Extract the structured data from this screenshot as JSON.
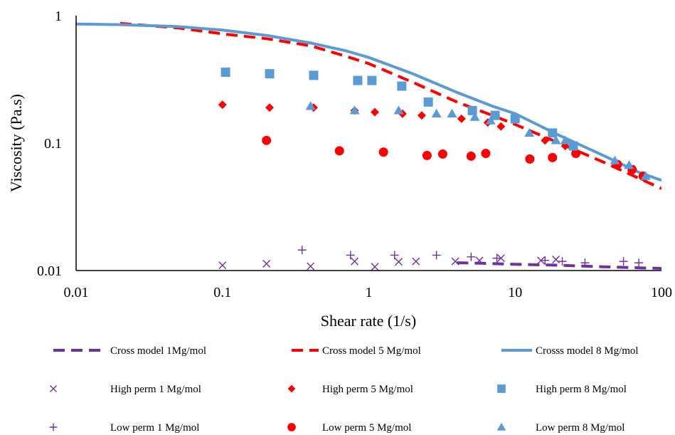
{
  "chart_data": {
    "type": "scatter",
    "title": "",
    "xlabel": "Shear rate (1/s)",
    "ylabel": "Viscosity (Pa.s)",
    "xscale": "log",
    "yscale": "log",
    "xlim": [
      0.01,
      100
    ],
    "ylim": [
      0.01,
      1
    ],
    "x_tick_labels": [
      "0.01",
      "0.1",
      "1",
      "10",
      "100"
    ],
    "y_tick_labels": [
      "0.01",
      "0.1",
      "1"
    ],
    "grid": false,
    "legend_position": "bottom",
    "colors": {
      "purple": "#7030a0",
      "red": "#ff0000",
      "blue": "#5b9bd5"
    },
    "series": [
      {
        "name": "Cross model 1Mg/mol",
        "kind": "line",
        "style": "dashed",
        "color": "#7030a0",
        "x": [
          4,
          6,
          10,
          20,
          40,
          70,
          100
        ],
        "y": [
          0.0115,
          0.0114,
          0.0112,
          0.011,
          0.0107,
          0.0105,
          0.0104
        ]
      },
      {
        "name": "Cross model 5 Mg/mol",
        "kind": "line",
        "style": "dashed",
        "color": "#ff0000",
        "x": [
          0.02,
          0.05,
          0.1,
          0.2,
          0.4,
          0.7,
          1,
          2,
          4,
          7,
          10,
          20,
          40,
          70,
          100
        ],
        "y": [
          0.87,
          0.8,
          0.72,
          0.66,
          0.58,
          0.48,
          0.42,
          0.3,
          0.21,
          0.165,
          0.14,
          0.1,
          0.071,
          0.053,
          0.044
        ]
      },
      {
        "name": "Crosss model 8 Mg/mol",
        "kind": "line",
        "style": "solid",
        "color": "#5b9bd5",
        "x": [
          0.01,
          0.02,
          0.05,
          0.1,
          0.2,
          0.4,
          0.7,
          1,
          2,
          4,
          7,
          10,
          20,
          40,
          70,
          100
        ],
        "y": [
          0.86,
          0.85,
          0.82,
          0.77,
          0.7,
          0.61,
          0.53,
          0.47,
          0.35,
          0.25,
          0.195,
          0.17,
          0.115,
          0.08,
          0.059,
          0.051
        ]
      },
      {
        "name": "High perm 1 Mg/mol",
        "kind": "scatter",
        "marker": "x",
        "color": "#7030a0",
        "x": [
          0.1,
          0.2,
          0.4,
          0.8,
          1.1,
          1.6,
          2.1,
          3.9,
          5.7,
          8.0,
          15.0,
          19.0
        ],
        "y": [
          0.011,
          0.0113,
          0.0108,
          0.0118,
          0.0107,
          0.0117,
          0.0118,
          0.0118,
          0.012,
          0.0125,
          0.012,
          0.0122
        ]
      },
      {
        "name": "Low perm 1 Mg/mol",
        "kind": "scatter",
        "marker": "plus",
        "color": "#7030a0",
        "x": [
          0.35,
          0.75,
          1.5,
          2.9,
          5.0,
          7.5,
          16.0,
          21.0,
          30.0,
          55.0,
          70.0
        ],
        "y": [
          0.0145,
          0.0132,
          0.0132,
          0.0132,
          0.0128,
          0.0125,
          0.012,
          0.0118,
          0.0115,
          0.0118,
          0.0115
        ]
      },
      {
        "name": "High perm 5 Mg/mol",
        "kind": "scatter",
        "marker": "diamond",
        "color": "#ff0000",
        "x": [
          0.1,
          0.21,
          0.42,
          0.8,
          1.1,
          1.7,
          2.3,
          4.3,
          6.5,
          8.0,
          16.0,
          22.0
        ],
        "y": [
          0.2,
          0.19,
          0.19,
          0.18,
          0.175,
          0.17,
          0.165,
          0.155,
          0.145,
          0.135,
          0.105,
          0.095
        ]
      },
      {
        "name": "Low perm 5 Mg/mol",
        "kind": "scatter",
        "marker": "circle",
        "color": "#ff0000",
        "x": [
          0.2,
          0.63,
          1.26,
          2.5,
          3.2,
          5.0,
          6.3,
          12.6,
          18.0,
          26.0,
          50.0,
          63.0,
          75.0
        ],
        "y": [
          0.105,
          0.087,
          0.085,
          0.08,
          0.082,
          0.079,
          0.083,
          0.075,
          0.077,
          0.083,
          0.068,
          0.062,
          0.055
        ]
      },
      {
        "name": "High perm 8 Mg/mol",
        "kind": "scatter",
        "marker": "square",
        "color": "#5b9bd5",
        "x": [
          0.105,
          0.21,
          0.42,
          0.84,
          1.05,
          1.68,
          2.55,
          5.1,
          7.3,
          10.0,
          18.0,
          25.0
        ],
        "y": [
          0.36,
          0.35,
          0.34,
          0.31,
          0.31,
          0.28,
          0.21,
          0.18,
          0.165,
          0.155,
          0.12,
          0.095
        ]
      },
      {
        "name": "Low perm 8 Mg/mol",
        "kind": "scatter",
        "marker": "triangle",
        "color": "#5b9bd5",
        "x": [
          0.4,
          0.8,
          1.6,
          2.9,
          3.7,
          5.3,
          6.8,
          12.5,
          19.0,
          22.0,
          48.0,
          60.0,
          78.0
        ],
        "y": [
          0.195,
          0.18,
          0.18,
          0.17,
          0.17,
          0.16,
          0.15,
          0.12,
          0.105,
          0.105,
          0.073,
          0.067,
          0.055
        ]
      }
    ],
    "legend_order": [
      0,
      3,
      4,
      1,
      5,
      6,
      2,
      7,
      8
    ]
  }
}
